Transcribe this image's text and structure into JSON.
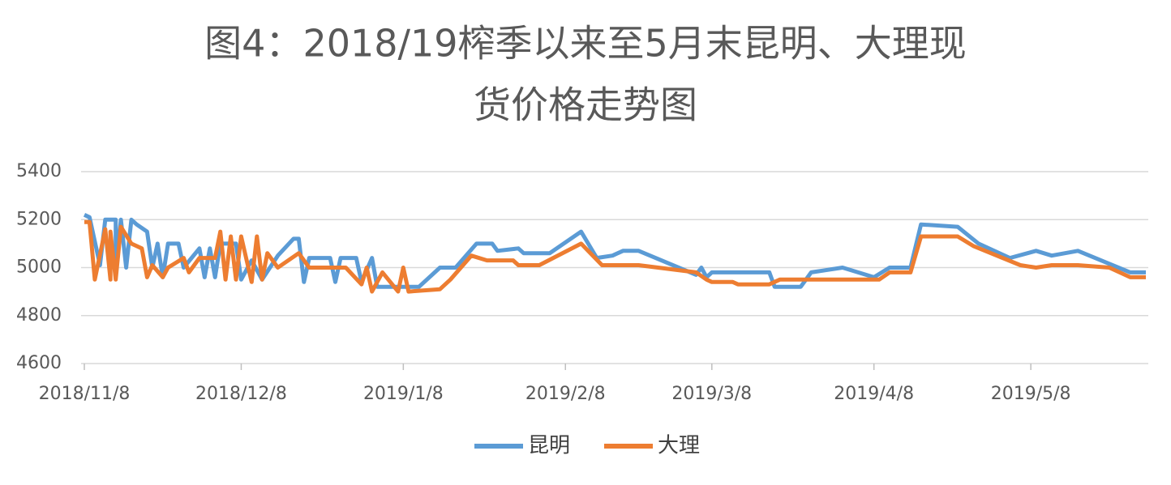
{
  "chart_data": {
    "type": "line",
    "title": [
      "图4：2018/19榨季以来至5月末昆明、大理现",
      "货价格走势图"
    ],
    "xlim": [
      "2018/11/8",
      "2019/5/30"
    ],
    "xticks": [
      "2018/11/8",
      "2018/12/8",
      "2019/1/8",
      "2019/2/8",
      "2019/3/8",
      "2019/4/8",
      "2019/5/8"
    ],
    "ylim": [
      4600,
      5400
    ],
    "yticks": [
      4600,
      4800,
      5000,
      5200,
      5400
    ],
    "grid": true,
    "legend": "bottom",
    "series": [
      {
        "name": "昆明",
        "color": "#5b9bd5",
        "x": [
          "2018/11/8",
          "2018/11/9",
          "2018/11/11",
          "2018/11/12",
          "2018/11/14",
          "2018/11/14",
          "2018/11/15",
          "2018/11/16",
          "2018/11/17",
          "2018/11/18",
          "2018/11/20",
          "2018/11/21",
          "2018/11/22",
          "2018/11/23",
          "2018/11/24",
          "2018/11/26",
          "2018/11/27",
          "2018/11/30",
          "2018/12/1",
          "2018/12/2",
          "2018/12/3",
          "2018/12/4",
          "2018/12/7",
          "2018/12/8",
          "2018/12/10",
          "2018/12/12",
          "2018/12/15",
          "2018/12/18",
          "2018/12/19",
          "2018/12/20",
          "2018/12/21",
          "2018/12/25",
          "2018/12/26",
          "2018/12/27",
          "2018/12/30",
          "2018/12/31",
          "2019/1/2",
          "2019/1/3",
          "2019/1/11",
          "2019/1/15",
          "2019/1/18",
          "2019/1/22",
          "2019/1/25",
          "2019/1/26",
          "2019/1/30",
          "2019/1/31",
          "2019/2/5",
          "2019/2/11",
          "2019/2/14",
          "2019/2/17",
          "2019/2/19",
          "2019/2/22",
          "2019/3/5",
          "2019/3/6",
          "2019/3/7",
          "2019/3/8",
          "2019/3/12",
          "2019/3/19",
          "2019/3/20",
          "2019/3/25",
          "2019/3/27",
          "2019/4/2",
          "2019/4/8",
          "2019/4/11",
          "2019/4/15",
          "2019/4/17",
          "2019/4/24",
          "2019/4/28",
          "2019/5/4",
          "2019/5/9",
          "2019/5/12",
          "2019/5/17",
          "2019/5/27",
          "2019/5/30"
        ],
        "values": [
          5220,
          5210,
          5010,
          5200,
          5200,
          5000,
          5200,
          5000,
          5200,
          5180,
          5150,
          5000,
          5100,
          4960,
          5100,
          5100,
          5000,
          5080,
          4960,
          5080,
          4960,
          5100,
          5100,
          4950,
          5030,
          4950,
          5050,
          5120,
          5120,
          4940,
          5040,
          5040,
          4940,
          5040,
          5040,
          4940,
          5040,
          4920,
          4920,
          5000,
          5000,
          5100,
          5100,
          5070,
          5080,
          5060,
          5060,
          5150,
          5040,
          5050,
          5070,
          5070,
          4970,
          5000,
          4960,
          4980,
          4980,
          4980,
          4920,
          4920,
          4980,
          5000,
          4960,
          5000,
          5000,
          5180,
          5170,
          5100,
          5040,
          5070,
          5050,
          5070,
          4980,
          4980
        ]
      },
      {
        "name": "大理",
        "color": "#ed7d31",
        "x": [
          "2018/11/8",
          "2018/11/9",
          "2018/11/10",
          "2018/11/12",
          "2018/11/13",
          "2018/11/13",
          "2018/11/14",
          "2018/11/15",
          "2018/11/17",
          "2018/11/19",
          "2018/11/20",
          "2018/11/21",
          "2018/11/23",
          "2018/11/24",
          "2018/11/27",
          "2018/11/28",
          "2018/11/30",
          "2018/12/3",
          "2018/12/4",
          "2018/12/5",
          "2018/12/6",
          "2018/12/7",
          "2018/12/8",
          "2018/12/10",
          "2018/12/11",
          "2018/12/12",
          "2018/12/13",
          "2018/12/15",
          "2018/12/19",
          "2018/12/21",
          "2018/12/28",
          "2018/12/31",
          "2019/1/1",
          "2019/1/2",
          "2019/1/4",
          "2019/1/7",
          "2019/1/8",
          "2019/1/9",
          "2019/1/15",
          "2019/1/17",
          "2019/1/21",
          "2019/1/24",
          "2019/1/29",
          "2019/1/30",
          "2019/2/3",
          "2019/2/11",
          "2019/2/15",
          "2019/2/22",
          "2019/3/5",
          "2019/3/7",
          "2019/3/8",
          "2019/3/12",
          "2019/3/13",
          "2019/3/19",
          "2019/3/21",
          "2019/4/9",
          "2019/4/11",
          "2019/4/15",
          "2019/4/17",
          "2019/4/24",
          "2019/4/27",
          "2019/5/6",
          "2019/5/9",
          "2019/5/12",
          "2019/5/17",
          "2019/5/23",
          "2019/5/27",
          "2019/5/30"
        ],
        "values": [
          5190,
          5190,
          4950,
          5160,
          4950,
          5150,
          4950,
          5170,
          5100,
          5080,
          4960,
          5010,
          4960,
          5000,
          5040,
          4980,
          5040,
          5040,
          5150,
          4950,
          5130,
          4950,
          5130,
          4940,
          5130,
          4950,
          5060,
          5000,
          5060,
          5000,
          5000,
          4930,
          5000,
          4900,
          4980,
          4900,
          5000,
          4900,
          4910,
          4950,
          5050,
          5030,
          5030,
          5010,
          5010,
          5100,
          5010,
          5010,
          4980,
          4950,
          4940,
          4940,
          4930,
          4930,
          4950,
          4950,
          4980,
          4980,
          5130,
          5130,
          5090,
          5010,
          5000,
          5010,
          5010,
          5000,
          4960,
          4960
        ]
      }
    ]
  }
}
